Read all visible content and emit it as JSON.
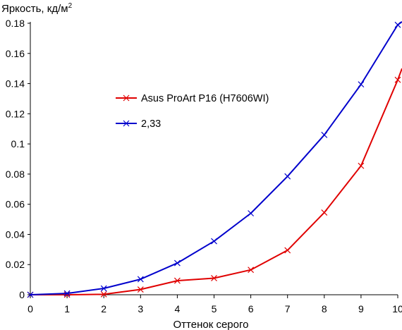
{
  "chart_data": {
    "type": "line",
    "ylabel": "Яркость, кд/м",
    "ylabel_sup": "2",
    "xlabel": "Оттенок серого",
    "x": [
      0,
      1,
      2,
      3,
      4,
      5,
      6,
      7,
      8,
      9,
      10
    ],
    "xticks": [
      "0",
      "1",
      "2",
      "3",
      "4",
      "5",
      "6",
      "7",
      "8",
      "9",
      "10"
    ],
    "yticks": [
      "0",
      "0.02",
      "0.04",
      "0.06",
      "0.08",
      "0.1",
      "0.12",
      "0.14",
      "0.16",
      "0.18"
    ],
    "ytick_values": [
      0,
      0.02,
      0.04,
      0.06,
      0.08,
      0.1,
      0.12,
      0.14,
      0.16,
      0.18
    ],
    "xlim": [
      0,
      10
    ],
    "ylim": [
      0,
      0.18
    ],
    "grid": false,
    "legend_position": "center-left",
    "series": [
      {
        "name": "Asus ProArt P16 (H7606WI)",
        "color": "#e00000",
        "marker": "x",
        "values": [
          0,
          0,
          0.0003,
          0.0035,
          0.0093,
          0.011,
          0.0165,
          0.0295,
          0.0545,
          0.0855,
          0.1425
        ],
        "end_value": 0.15
      },
      {
        "name": "2,33",
        "color": "#0000cc",
        "marker": "x",
        "values": [
          0,
          0.0009,
          0.0042,
          0.0103,
          0.021,
          0.0355,
          0.054,
          0.0785,
          0.106,
          0.1395,
          0.179
        ],
        "end_value": 0.181
      }
    ]
  }
}
